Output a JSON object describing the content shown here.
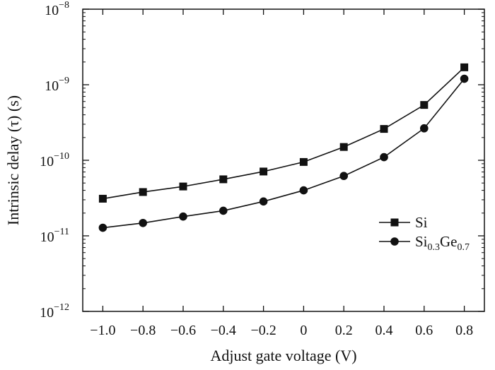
{
  "chart_data": {
    "type": "line",
    "title": "",
    "xlabel": "Adjust gate voltage (V)",
    "ylabel": "Intrinsic delay (τ) (s)",
    "yscale": "log",
    "xlim": [
      -1.1,
      0.9
    ],
    "ylim": [
      1e-12,
      1e-08
    ],
    "x_ticks": [
      -1.0,
      -0.8,
      -0.6,
      -0.4,
      -0.2,
      0,
      0.2,
      0.4,
      0.6,
      0.8
    ],
    "x_tick_labels": [
      "−1.0",
      "−0.8",
      "−0.6",
      "−0.4",
      "−0.2",
      "0",
      "0.2",
      "0.4",
      "0.6",
      "0.8"
    ],
    "y_ticks": [
      {
        "base": "10",
        "exp": "−12",
        "value": 1e-12
      },
      {
        "base": "10",
        "exp": "−11",
        "value": 1e-11
      },
      {
        "base": "10",
        "exp": "−10",
        "value": 1e-10
      },
      {
        "base": "10",
        "exp": "−9",
        "value": 1e-09
      },
      {
        "base": "10",
        "exp": "−8",
        "value": 1e-08
      }
    ],
    "grid": false,
    "legend_position": "right",
    "x": [
      -1.0,
      -0.8,
      -0.6,
      -0.4,
      -0.2,
      0,
      0.2,
      0.4,
      0.6,
      0.8
    ],
    "series": [
      {
        "name": "Si",
        "name_parts": [
          [
            "Si",
            false
          ]
        ],
        "marker": "square",
        "color": "#111111",
        "values": [
          3.1e-11,
          3.8e-11,
          4.5e-11,
          5.6e-11,
          7.1e-11,
          9.5e-11,
          1.5e-10,
          2.6e-10,
          5.4e-10,
          1.7e-09
        ]
      },
      {
        "name": "Si0.3Ge0.7",
        "name_parts": [
          [
            "Si",
            false
          ],
          [
            "0.3",
            true
          ],
          [
            "Ge",
            false
          ],
          [
            "0.7",
            true
          ]
        ],
        "marker": "circle",
        "color": "#111111",
        "values": [
          1.28e-11,
          1.48e-11,
          1.8e-11,
          2.15e-11,
          2.85e-11,
          4e-11,
          6.2e-11,
          1.1e-10,
          2.65e-10,
          1.2e-09
        ]
      }
    ]
  }
}
